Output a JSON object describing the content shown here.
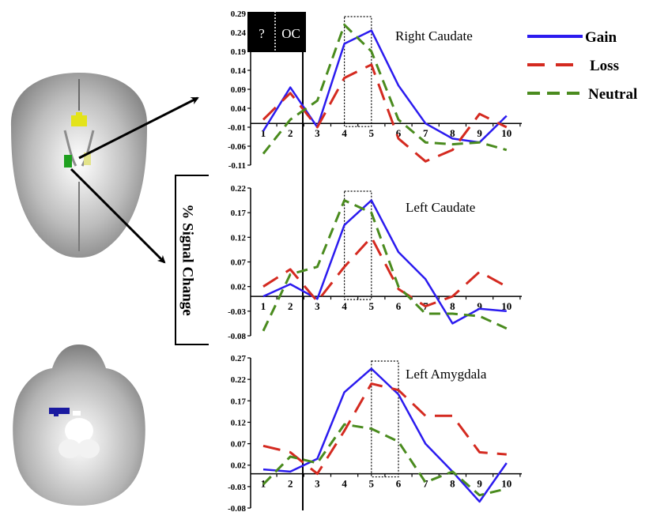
{
  "ylabel": "% Signal Change",
  "box_labels": {
    "question": "?",
    "oc": "OC"
  },
  "colors": {
    "gain": "#2b1bef",
    "loss": "#d42a20",
    "neutral": "#4a8b1e",
    "axis": "#000000"
  },
  "brain_images": [
    {
      "name": "axial-slice-caudate",
      "regions": [
        "yellow cluster",
        "green cluster"
      ]
    },
    {
      "name": "axial-slice-amygdala",
      "regions": [
        "blue cluster"
      ]
    }
  ],
  "chart_data": [
    {
      "type": "line",
      "title": "Right Caudate",
      "x": [
        1,
        2,
        3,
        4,
        5,
        6,
        7,
        8,
        9,
        10
      ],
      "ylim": [
        -0.11,
        0.29
      ],
      "yticks": [
        "0.29",
        "0.24",
        "0.19",
        "0.14",
        "0.09",
        "0.04",
        "-0.01",
        "-0.06",
        "-0.11"
      ],
      "highlight": [
        4,
        5
      ],
      "series": [
        {
          "name": "Gain",
          "values": [
            -0.02,
            0.095,
            -0.01,
            0.21,
            0.245,
            0.1,
            0.0,
            -0.04,
            -0.05,
            0.02
          ]
        },
        {
          "name": "Loss",
          "values": [
            0.01,
            0.08,
            -0.01,
            0.12,
            0.155,
            -0.04,
            -0.1,
            -0.07,
            0.025,
            -0.01
          ]
        },
        {
          "name": "Neutral",
          "values": [
            -0.08,
            0.01,
            0.06,
            0.26,
            0.19,
            0.01,
            -0.05,
            -0.055,
            -0.05,
            -0.07
          ]
        }
      ]
    },
    {
      "type": "line",
      "title": "Left Caudate",
      "x": [
        1,
        2,
        3,
        4,
        5,
        6,
        7,
        8,
        9,
        10
      ],
      "ylim": [
        -0.08,
        0.22
      ],
      "yticks": [
        "0.22",
        "0.17",
        "0.12",
        "0.07",
        "0.02",
        "-0.03",
        "-0.08"
      ],
      "highlight": [
        4,
        5
      ],
      "series": [
        {
          "name": "Gain",
          "values": [
            0.0,
            0.025,
            -0.005,
            0.145,
            0.195,
            0.09,
            0.035,
            -0.055,
            -0.025,
            -0.03
          ]
        },
        {
          "name": "Loss",
          "values": [
            0.02,
            0.055,
            -0.01,
            0.06,
            0.12,
            0.015,
            -0.02,
            0.0,
            0.05,
            0.02
          ]
        },
        {
          "name": "Neutral",
          "values": [
            -0.07,
            0.045,
            0.06,
            0.195,
            0.17,
            0.02,
            -0.035,
            -0.035,
            -0.04,
            -0.065
          ]
        }
      ]
    },
    {
      "type": "line",
      "title": "Left Amygdala",
      "x": [
        1,
        2,
        3,
        4,
        5,
        6,
        7,
        8,
        9,
        10
      ],
      "ylim": [
        -0.08,
        0.27
      ],
      "yticks": [
        "0.27",
        "0.22",
        "0.17",
        "0.12",
        "0.07",
        "0.02",
        "-0.03",
        "-0.08"
      ],
      "highlight": [
        5,
        6
      ],
      "series": [
        {
          "name": "Gain",
          "values": [
            0.01,
            0.005,
            0.035,
            0.19,
            0.245,
            0.185,
            0.07,
            0.005,
            -0.065,
            0.025
          ]
        },
        {
          "name": "Loss",
          "values": [
            0.065,
            0.05,
            0.0,
            0.1,
            0.21,
            0.195,
            0.135,
            0.135,
            0.05,
            0.045
          ]
        },
        {
          "name": "Neutral",
          "values": [
            -0.025,
            0.04,
            0.025,
            0.115,
            0.105,
            0.075,
            -0.02,
            0.005,
            -0.05,
            -0.035
          ]
        }
      ]
    }
  ]
}
